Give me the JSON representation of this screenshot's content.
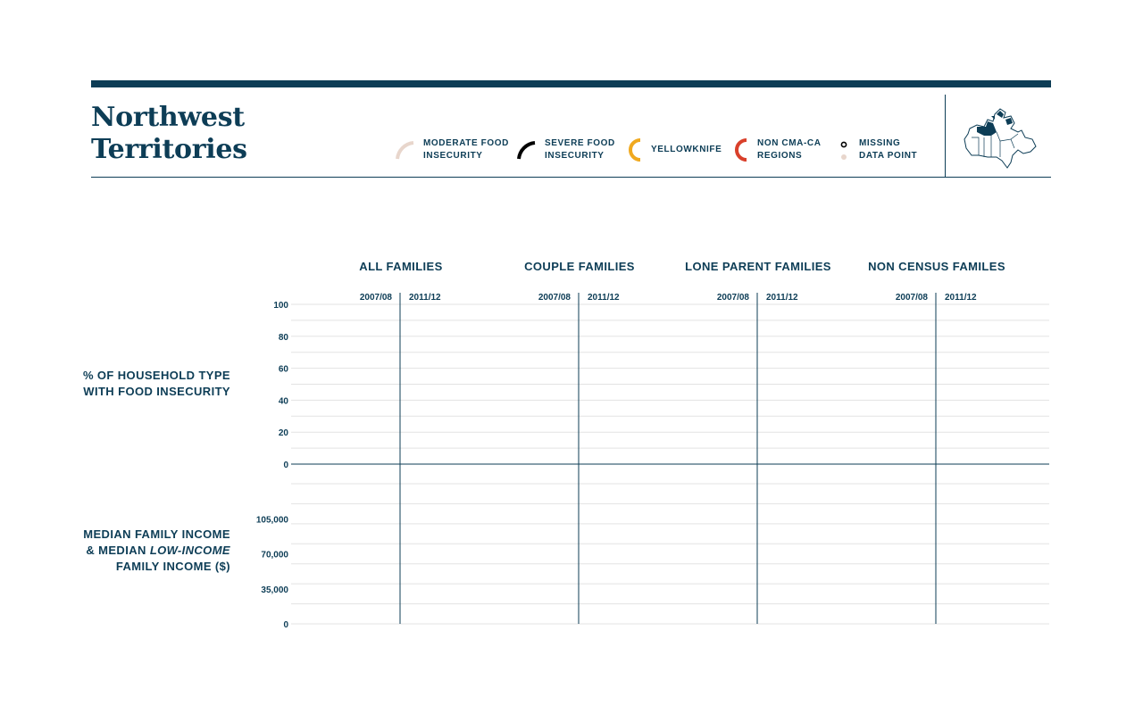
{
  "header": {
    "title_line1": "Northwest",
    "title_line2": "Territories"
  },
  "legend": [
    {
      "label_line1": "MODERATE FOOD",
      "label_line2": "INSECURITY",
      "color": "#e8d6cc",
      "icon": "arc-right-icon"
    },
    {
      "label_line1": "SEVERE FOOD",
      "label_line2": "INSECURITY",
      "color": "#000000",
      "icon": "arc-right-icon"
    },
    {
      "label_line1": "YELLOWKNIFE",
      "label_line2": "",
      "color": "#f0a91f",
      "icon": "arc-left-icon"
    },
    {
      "label_line1": "NON CMA-CA",
      "label_line2": "REGIONS",
      "color": "#d9402b",
      "icon": "arc-left-icon"
    },
    {
      "label_line1": "MISSING",
      "label_line2": "DATA POINT",
      "color": "#000000",
      "icon": "dot-icon"
    }
  ],
  "axis_titles": {
    "top_line1": "% OF HOUSEHOLD TYPE",
    "top_line2": "WITH FOOD INSECURITY",
    "bottom_line1": "MEDIAN FAMILY INCOME",
    "bottom_line2_prefix": "& MEDIAN ",
    "bottom_line2_italic": "LOW-INCOME",
    "bottom_line3": "FAMILY INCOME ($)"
  },
  "chart_data": {
    "type": "bar",
    "groups": [
      "ALL FAMILIES",
      "COUPLE FAMILIES",
      "LONE PARENT FAMILIES",
      "NON CENSUS FAMILES"
    ],
    "periods": [
      "2007/08",
      "2011/12"
    ],
    "top_panel": {
      "ylabel": "% OF HOUSEHOLD TYPE WITH FOOD INSECURITY",
      "ylim": [
        0,
        100
      ],
      "ticks": [
        "100",
        "80",
        "60",
        "40",
        "20",
        "0"
      ],
      "series": []
    },
    "bottom_panel": {
      "ylabel": "MEDIAN FAMILY INCOME & MEDIAN LOW-INCOME FAMILY INCOME ($)",
      "ylim": [
        0,
        140000
      ],
      "ticks": [
        "105,000",
        "70,000",
        "35,000",
        "0"
      ],
      "series": []
    },
    "grid": true,
    "colors": {
      "axis": "#0d3d56",
      "grid": "#e3e3e3"
    }
  }
}
